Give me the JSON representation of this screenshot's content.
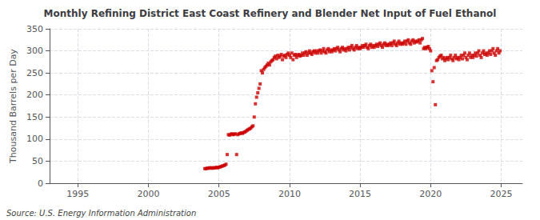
{
  "chart_data": {
    "type": "scatter",
    "title": "Monthly Refining District East Coast Refinery and Blender Net Input of Fuel Ethanol",
    "ylabel": "Thousand Barrels per Day",
    "annotation": "Source: U.S. Energy Information Administration",
    "color": "#cc0000",
    "marker": "square",
    "grid": true,
    "xlim": [
      1993.0,
      2026.5
    ],
    "ylim": [
      0,
      350
    ],
    "xticks": [
      1995,
      2000,
      2005,
      2010,
      2015,
      2020,
      2025
    ],
    "yticks": [
      0,
      50,
      100,
      150,
      200,
      250,
      300,
      350
    ],
    "x": [
      2004.0,
      2004.083,
      2004.167,
      2004.25,
      2004.333,
      2004.417,
      2004.5,
      2004.583,
      2004.667,
      2004.75,
      2004.833,
      2004.917,
      2005.0,
      2005.083,
      2005.167,
      2005.25,
      2005.333,
      2005.417,
      2005.5,
      2005.583,
      2005.667,
      2005.75,
      2005.833,
      2005.917,
      2006.0,
      2006.083,
      2006.167,
      2006.25,
      2006.333,
      2006.417,
      2006.5,
      2006.583,
      2006.667,
      2006.75,
      2006.833,
      2006.917,
      2007.0,
      2007.083,
      2007.167,
      2007.25,
      2007.333,
      2007.417,
      2007.5,
      2007.583,
      2007.667,
      2007.75,
      2007.833,
      2007.917,
      2008.0,
      2008.083,
      2008.167,
      2008.25,
      2008.333,
      2008.417,
      2008.5,
      2008.583,
      2008.667,
      2008.75,
      2008.833,
      2008.917,
      2009.0,
      2009.083,
      2009.167,
      2009.25,
      2009.333,
      2009.417,
      2009.5,
      2009.583,
      2009.667,
      2009.75,
      2009.833,
      2009.917,
      2010.0,
      2010.083,
      2010.167,
      2010.25,
      2010.333,
      2010.417,
      2010.5,
      2010.583,
      2010.667,
      2010.75,
      2010.833,
      2010.917,
      2011.0,
      2011.083,
      2011.167,
      2011.25,
      2011.333,
      2011.417,
      2011.5,
      2011.583,
      2011.667,
      2011.75,
      2011.833,
      2011.917,
      2012.0,
      2012.083,
      2012.167,
      2012.25,
      2012.333,
      2012.417,
      2012.5,
      2012.583,
      2012.667,
      2012.75,
      2012.833,
      2012.917,
      2013.0,
      2013.083,
      2013.167,
      2013.25,
      2013.333,
      2013.417,
      2013.5,
      2013.583,
      2013.667,
      2013.75,
      2013.833,
      2013.917,
      2014.0,
      2014.083,
      2014.167,
      2014.25,
      2014.333,
      2014.417,
      2014.5,
      2014.583,
      2014.667,
      2014.75,
      2014.833,
      2014.917,
      2015.0,
      2015.083,
      2015.167,
      2015.25,
      2015.333,
      2015.417,
      2015.5,
      2015.583,
      2015.667,
      2015.75,
      2015.833,
      2015.917,
      2016.0,
      2016.083,
      2016.167,
      2016.25,
      2016.333,
      2016.417,
      2016.5,
      2016.583,
      2016.667,
      2016.75,
      2016.833,
      2016.917,
      2017.0,
      2017.083,
      2017.167,
      2017.25,
      2017.333,
      2017.417,
      2017.5,
      2017.583,
      2017.667,
      2017.75,
      2017.833,
      2017.917,
      2018.0,
      2018.083,
      2018.167,
      2018.25,
      2018.333,
      2018.417,
      2018.5,
      2018.583,
      2018.667,
      2018.75,
      2018.833,
      2018.917,
      2019.0,
      2019.083,
      2019.167,
      2019.25,
      2019.333,
      2019.417,
      2019.5,
      2019.583,
      2019.667,
      2019.75,
      2019.833,
      2019.917,
      2020.0,
      2020.083,
      2020.167,
      2020.25,
      2020.333,
      2020.417,
      2020.5,
      2020.583,
      2020.667,
      2020.75,
      2020.833,
      2020.917,
      2021.0,
      2021.083,
      2021.167,
      2021.25,
      2021.333,
      2021.417,
      2021.5,
      2021.583,
      2021.667,
      2021.75,
      2021.833,
      2021.917,
      2022.0,
      2022.083,
      2022.167,
      2022.25,
      2022.333,
      2022.417,
      2022.5,
      2022.583,
      2022.667,
      2022.75,
      2022.833,
      2022.917,
      2023.0,
      2023.083,
      2023.167,
      2023.25,
      2023.333,
      2023.417,
      2023.5,
      2023.583,
      2023.667,
      2023.75,
      2023.833,
      2023.917,
      2024.0,
      2024.083,
      2024.167,
      2024.25,
      2024.333,
      2024.417,
      2024.5,
      2024.583,
      2024.667,
      2024.75,
      2024.833,
      2024.917
    ],
    "values": [
      33,
      33,
      34,
      34,
      35,
      34,
      35,
      34,
      35,
      35,
      36,
      35,
      36,
      37,
      38,
      39,
      40,
      41,
      43,
      65,
      110,
      109,
      111,
      112,
      110,
      111,
      112,
      65,
      110,
      112,
      113,
      114,
      113,
      115,
      116,
      118,
      120,
      122,
      123,
      125,
      128,
      130,
      150,
      180,
      195,
      205,
      215,
      225,
      255,
      250,
      258,
      262,
      265,
      268,
      272,
      268,
      275,
      278,
      280,
      285,
      288,
      282,
      290,
      285,
      288,
      292,
      280,
      288,
      290,
      285,
      292,
      295,
      290,
      285,
      295,
      280,
      290,
      292,
      285,
      290,
      292,
      288,
      290,
      295,
      290,
      295,
      298,
      290,
      295,
      300,
      295,
      292,
      298,
      300,
      295,
      300,
      295,
      300,
      302,
      295,
      300,
      305,
      298,
      295,
      302,
      305,
      298,
      302,
      298,
      302,
      305,
      300,
      305,
      308,
      302,
      298,
      305,
      308,
      302,
      305,
      300,
      305,
      308,
      302,
      308,
      312,
      305,
      302,
      308,
      312,
      305,
      308,
      305,
      308,
      312,
      308,
      312,
      315,
      308,
      305,
      312,
      315,
      308,
      312,
      308,
      312,
      315,
      310,
      315,
      318,
      312,
      308,
      315,
      318,
      312,
      315,
      312,
      315,
      318,
      312,
      318,
      322,
      315,
      312,
      318,
      322,
      315,
      318,
      315,
      318,
      322,
      315,
      322,
      325,
      318,
      315,
      322,
      325,
      318,
      322,
      320,
      322,
      325,
      318,
      325,
      328,
      305,
      308,
      305,
      308,
      310,
      305,
      300,
      255,
      230,
      262,
      178,
      278,
      280,
      285,
      288,
      290,
      282,
      285,
      278,
      282,
      285,
      280,
      285,
      290,
      282,
      278,
      285,
      290,
      282,
      285,
      280,
      285,
      290,
      282,
      290,
      295,
      285,
      280,
      290,
      295,
      285,
      290,
      285,
      290,
      295,
      288,
      295,
      300,
      290,
      285,
      295,
      300,
      292,
      295,
      290,
      295,
      300,
      292,
      300,
      305,
      295,
      290,
      300,
      305,
      295,
      300
    ]
  }
}
